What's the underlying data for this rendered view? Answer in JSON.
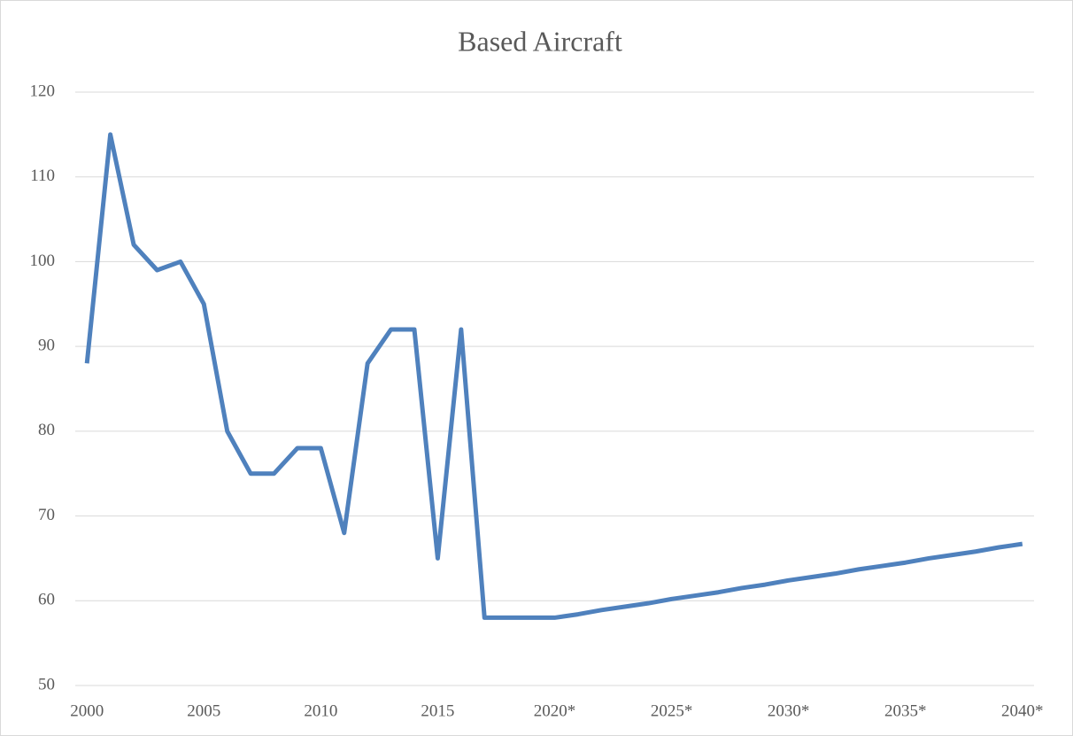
{
  "chart_data": {
    "type": "line",
    "title": "Based Aircraft",
    "categories": [
      "2000",
      null,
      null,
      null,
      null,
      "2005",
      null,
      null,
      null,
      null,
      "2010",
      null,
      null,
      null,
      null,
      "2015",
      null,
      null,
      null,
      null,
      "2020*",
      null,
      null,
      null,
      null,
      "2025*",
      null,
      null,
      null,
      null,
      "2030*",
      null,
      null,
      null,
      null,
      "2035*",
      null,
      null,
      null,
      null,
      "2040*"
    ],
    "series": [
      {
        "name": "Based Aircraft",
        "color": "#4f81bd",
        "values": [
          88,
          115,
          102,
          99,
          100,
          95,
          80,
          75,
          75,
          78,
          78,
          68,
          88,
          92,
          92,
          65,
          92,
          58,
          58,
          58,
          58,
          58.4,
          58.9,
          59.3,
          59.7,
          60.2,
          60.6,
          61.0,
          61.5,
          61.9,
          62.4,
          62.8,
          63.2,
          63.7,
          64.1,
          64.5,
          65.0,
          65.4,
          65.8,
          66.3,
          66.7
        ]
      }
    ],
    "ylim": [
      50,
      120
    ],
    "yticks": [
      50,
      60,
      70,
      80,
      90,
      100,
      110,
      120
    ],
    "grid": true
  }
}
